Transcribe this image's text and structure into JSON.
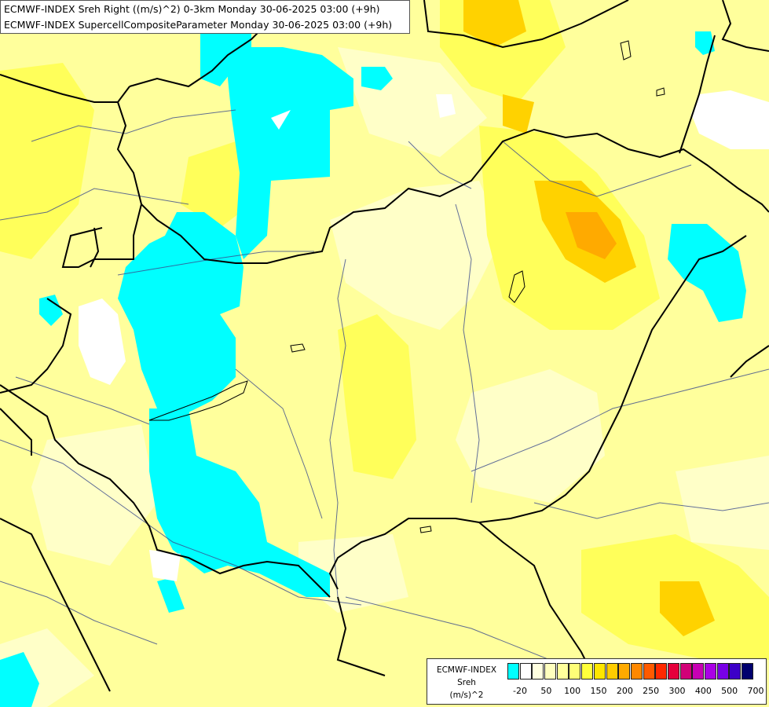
{
  "title": {
    "line1": "ECMWF-INDEX Sreh Right ((m/s)^2) 0-3km Monday 30-06-2025 03:00 (+9h)",
    "line2": "ECMWF-INDEX SupercellCompositeParameter Monday 30-06-2025 03:00 (+9h)"
  },
  "legend": {
    "title_line1": "ECMWF-INDEX",
    "title_line2": "Sreh",
    "title_line3": "(m/s)^2",
    "swatch_colors": [
      "#00ffff",
      "#ffffff",
      "#ffffe0",
      "#ffffbe",
      "#ffff9c",
      "#ffff78",
      "#ffff3c",
      "#ffe600",
      "#ffcc00",
      "#ffaa00",
      "#ff8800",
      "#ff5a00",
      "#ff2800",
      "#e6003c",
      "#d20078",
      "#c800b4",
      "#aa00e6",
      "#7800e6",
      "#3c00c8",
      "#00006e"
    ],
    "tick_labels": [
      "-20",
      "50",
      "100",
      "150",
      "200",
      "250",
      "300",
      "400",
      "500",
      "700"
    ]
  },
  "colors": {
    "background_field": "#ffff9c",
    "low_negative": "#00ffff",
    "light": "#ffffc8",
    "mid": "#ffff5a",
    "high": "#ffd200",
    "peak": "#ffaa00",
    "white": "#ffffff",
    "borders": "#000000",
    "rivers": "#3a4a8c"
  }
}
